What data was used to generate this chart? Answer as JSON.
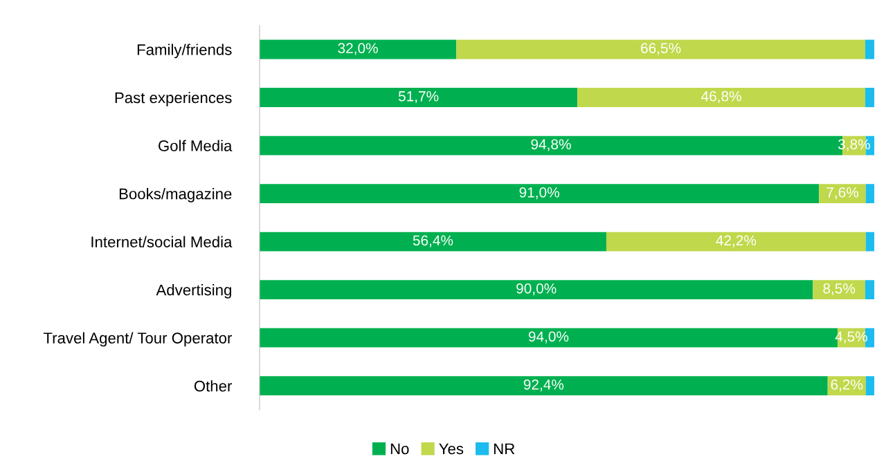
{
  "chart_data": {
    "type": "bar",
    "orientation": "horizontal",
    "stacked": true,
    "categories": [
      "Family/friends",
      "Past experiences",
      "Golf Media",
      "Books/magazine",
      "Internet/social Media",
      "Advertising",
      "Travel Agent/ Tour Operator",
      "Other"
    ],
    "series": [
      {
        "name": "No",
        "color": "#00b050",
        "values": [
          32.0,
          51.7,
          94.8,
          91.0,
          56.4,
          90.0,
          94.0,
          92.4
        ],
        "value_labels": [
          "32,0%",
          "51,7%",
          "94,8%",
          "91,0%",
          "56,4%",
          "90,0%",
          "94,0%",
          "92,4%"
        ]
      },
      {
        "name": "Yes",
        "color": "#c0d84c",
        "values": [
          66.5,
          46.8,
          3.8,
          7.6,
          42.2,
          8.5,
          4.5,
          6.2
        ],
        "value_labels": [
          "66,5%",
          "46,8%",
          "3,8%",
          "7,6%",
          "42,2%",
          "8,5%",
          "4,5%",
          "6,2%"
        ]
      },
      {
        "name": "NR",
        "color": "#1cbcef",
        "values": [
          1.5,
          1.5,
          1.4,
          1.4,
          1.4,
          1.5,
          1.5,
          1.4
        ]
      }
    ],
    "xlim": [
      0,
      100
    ],
    "tick_labels": "y",
    "grid": false,
    "legend": "bottom"
  }
}
